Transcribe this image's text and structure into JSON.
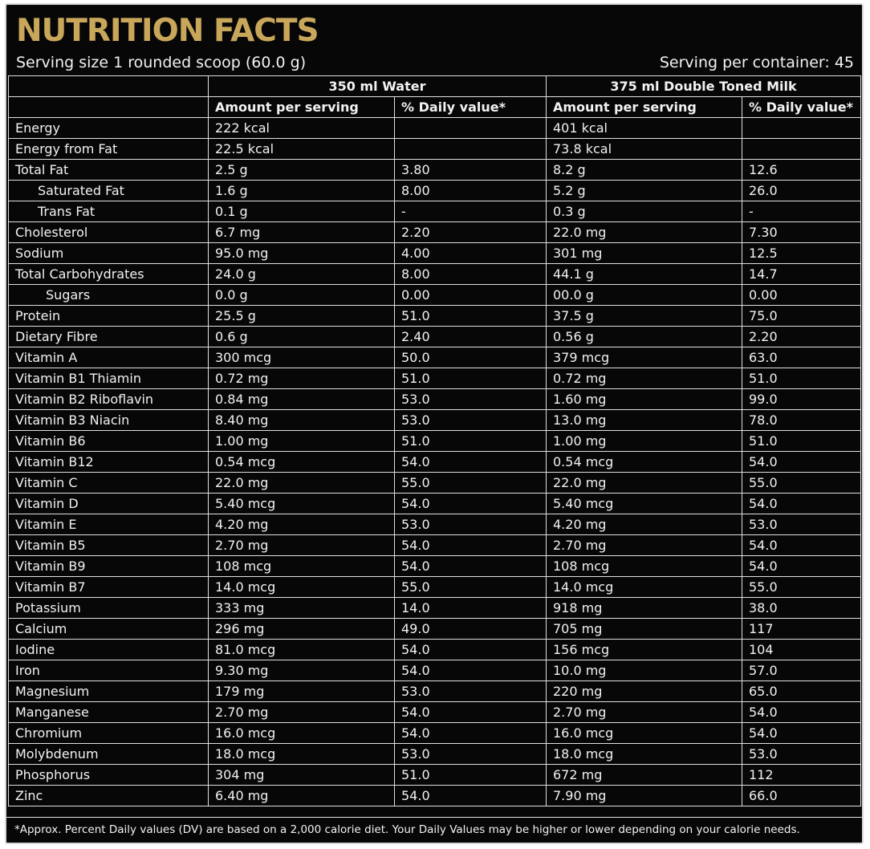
{
  "title": "NUTRITION FACTS",
  "serving_size": "Serving size 1 rounded scoop (60.0 g)",
  "servings_per_container": "Serving per container: 45",
  "colors": {
    "title_gold": "#c8a65a",
    "background": "#070707",
    "text": "#f2f2f2",
    "rule": "#e0e0e0"
  },
  "groups": [
    "350 ml Water",
    "375 ml Double Toned Milk"
  ],
  "column_headers": [
    "Amount per serving",
    "% Daily  value*",
    "Amount per serving",
    "% Daily value*"
  ],
  "rows": [
    {
      "name": "Energy",
      "indent": 0,
      "water_amount": "222  kcal",
      "water_dv": "",
      "milk_amount": "401 kcal",
      "milk_dv": ""
    },
    {
      "name": "Energy from Fat",
      "indent": 0,
      "water_amount": "22.5  kcal",
      "water_dv": "",
      "milk_amount": "73.8 kcal",
      "milk_dv": ""
    },
    {
      "name": "Total Fat",
      "indent": 0,
      "water_amount": "2.5 g",
      "water_dv": "3.80",
      "milk_amount": "8.2  g",
      "milk_dv": "12.6"
    },
    {
      "name": "Saturated Fat",
      "indent": 1,
      "water_amount": "1.6 g",
      "water_dv": "8.00",
      "milk_amount": "5.2  g",
      "milk_dv": "26.0"
    },
    {
      "name": "Trans Fat",
      "indent": 1,
      "water_amount": "0.1 g",
      "water_dv": "-",
      "milk_amount": "0.3  g",
      "milk_dv": "-"
    },
    {
      "name": "Cholesterol",
      "indent": 0,
      "water_amount": "6.7 mg",
      "water_dv": "2.20",
      "milk_amount": "22.0 mg",
      "milk_dv": "7.30"
    },
    {
      "name": "Sodium",
      "indent": 0,
      "water_amount": "95.0 mg",
      "water_dv": "4.00",
      "milk_amount": "301  mg",
      "milk_dv": "12.5"
    },
    {
      "name": "Total Carbohydrates",
      "indent": 0,
      "water_amount": "24.0 g",
      "water_dv": "8.00",
      "milk_amount": "44.1 g",
      "milk_dv": "14.7"
    },
    {
      "name": "Sugars",
      "indent": 2,
      "water_amount": "0.0 g",
      "water_dv": "0.00",
      "milk_amount": "00.0 g",
      "milk_dv": "0.00"
    },
    {
      "name": "Protein",
      "indent": 0,
      "water_amount": "25.5 g",
      "water_dv": "51.0",
      "milk_amount": "37.5 g",
      "milk_dv": "75.0"
    },
    {
      "name": "Dietary Fibre",
      "indent": 0,
      "water_amount": "0.6 g",
      "water_dv": "2.40",
      "milk_amount": "0.56 g",
      "milk_dv": "2.20"
    },
    {
      "name": "Vitamin A",
      "indent": 0,
      "water_amount": "300 mcg",
      "water_dv": "50.0",
      "milk_amount": "379 mcg",
      "milk_dv": "63.0"
    },
    {
      "name": "Vitamin B1 Thiamin",
      "indent": 0,
      "water_amount": "0.72 mg",
      "water_dv": "51.0",
      "milk_amount": "0.72 mg",
      "milk_dv": "51.0"
    },
    {
      "name": "Vitamin B2 Riboflavin",
      "indent": 0,
      "water_amount": "0.84 mg",
      "water_dv": "53.0",
      "milk_amount": "1.60 mg",
      "milk_dv": "99.0"
    },
    {
      "name": "Vitamin B3 Niacin",
      "indent": 0,
      "water_amount": "8.40 mg",
      "water_dv": "53.0",
      "milk_amount": "13.0 mg",
      "milk_dv": "78.0"
    },
    {
      "name": "Vitamin B6",
      "indent": 0,
      "water_amount": "1.00 mg",
      "water_dv": "51.0",
      "milk_amount": "1.00 mg",
      "milk_dv": "51.0"
    },
    {
      "name": "Vitamin B12",
      "indent": 0,
      "water_amount": "0.54 mcg",
      "water_dv": "54.0",
      "milk_amount": "0.54 mcg",
      "milk_dv": "54.0"
    },
    {
      "name": "Vitamin C",
      "indent": 0,
      "water_amount": "22.0 mg",
      "water_dv": "55.0",
      "milk_amount": "22.0 mg",
      "milk_dv": "55.0"
    },
    {
      "name": "Vitamin D",
      "indent": 0,
      "water_amount": "5.40 mcg",
      "water_dv": "54.0",
      "milk_amount": "5.40 mcg",
      "milk_dv": "54.0"
    },
    {
      "name": "Vitamin E",
      "indent": 0,
      "water_amount": "4.20 mg",
      "water_dv": "53.0",
      "milk_amount": "4.20 mg",
      "milk_dv": "53.0"
    },
    {
      "name": "Vitamin B5",
      "indent": 0,
      "water_amount": "2.70 mg",
      "water_dv": "54.0",
      "milk_amount": "2.70 mg",
      "milk_dv": "54.0"
    },
    {
      "name": "Vitamin B9",
      "indent": 0,
      "water_amount": "108  mcg",
      "water_dv": "54.0",
      "milk_amount": "108  mcg",
      "milk_dv": "54.0"
    },
    {
      "name": "Vitamin B7",
      "indent": 0,
      "water_amount": "14.0 mcg",
      "water_dv": "55.0",
      "milk_amount": "14.0 mcg",
      "milk_dv": "55.0"
    },
    {
      "name": "Potassium",
      "indent": 0,
      "water_amount": "333  mg",
      "water_dv": "14.0",
      "milk_amount": "918  mg",
      "milk_dv": "38.0"
    },
    {
      "name": "Calcium",
      "indent": 0,
      "water_amount": "296  mg",
      "water_dv": "49.0",
      "milk_amount": "705  mg",
      "milk_dv": "117"
    },
    {
      "name": "Iodine",
      "indent": 0,
      "water_amount": "81.0 mcg",
      "water_dv": "54.0",
      "milk_amount": "156  mcg",
      "milk_dv": "104"
    },
    {
      "name": "Iron",
      "indent": 0,
      "water_amount": "9.30 mg",
      "water_dv": "54.0",
      "milk_amount": "10.0 mg",
      "milk_dv": "57.0"
    },
    {
      "name": "Magnesium",
      "indent": 0,
      "water_amount": "179  mg",
      "water_dv": "53.0",
      "milk_amount": "220  mg",
      "milk_dv": "65.0"
    },
    {
      "name": "Manganese",
      "indent": 0,
      "water_amount": "2.70 mg",
      "water_dv": "54.0",
      "milk_amount": "2.70 mg",
      "milk_dv": "54.0"
    },
    {
      "name": "Chromium",
      "indent": 0,
      "water_amount": "16.0 mcg",
      "water_dv": "54.0",
      "milk_amount": "16.0 mcg",
      "milk_dv": "54.0"
    },
    {
      "name": "Molybdenum",
      "indent": 0,
      "water_amount": "18.0 mcg",
      "water_dv": "53.0",
      "milk_amount": "18.0 mcg",
      "milk_dv": "53.0"
    },
    {
      "name": "Phosphorus",
      "indent": 0,
      "water_amount": "304  mg",
      "water_dv": "51.0",
      "milk_amount": "672  mg",
      "milk_dv": "112"
    },
    {
      "name": "Zinc",
      "indent": 0,
      "water_amount": "6.40 mg",
      "water_dv": "54.0",
      "milk_amount": "7.90 mg",
      "milk_dv": "66.0"
    }
  ],
  "footnote": "*Approx. Percent Daily values (DV) are based on a 2,000 calorie diet. Your Daily Values may be higher or lower depending on your calorie needs."
}
